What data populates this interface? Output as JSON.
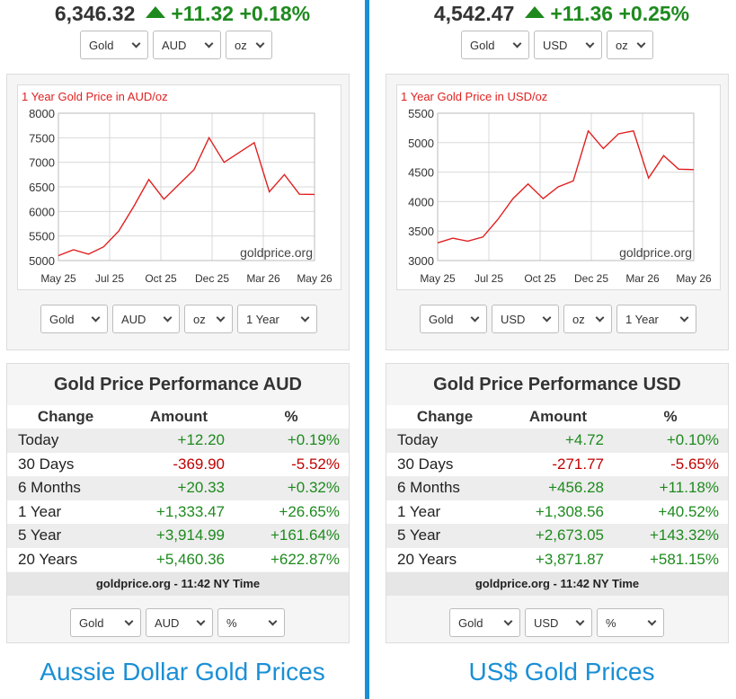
{
  "left": {
    "ticker": {
      "price": "6,346.32",
      "change": "+11.32",
      "percent": "+0.18%"
    },
    "top_selects": [
      "Gold",
      "AUD",
      "oz"
    ],
    "chart_selects": [
      "Gold",
      "AUD",
      "oz",
      "1 Year"
    ],
    "bottom_selects": [
      "Gold",
      "AUD",
      "%"
    ],
    "perf_title": "Gold Price Performance AUD",
    "headers": [
      "Change",
      "Amount",
      "%"
    ],
    "rows": [
      {
        "label": "Today",
        "amount": "+12.20",
        "pct": "+0.19%",
        "sign": "pos"
      },
      {
        "label": "30 Days",
        "amount": "-369.90",
        "pct": "-5.52%",
        "sign": "neg"
      },
      {
        "label": "6 Months",
        "amount": "+20.33",
        "pct": "+0.32%",
        "sign": "pos"
      },
      {
        "label": "1 Year",
        "amount": "+1,333.47",
        "pct": "+26.65%",
        "sign": "pos"
      },
      {
        "label": "5 Year",
        "amount": "+3,914.99",
        "pct": "+161.64%",
        "sign": "pos"
      },
      {
        "label": "20 Years",
        "amount": "+5,460.36",
        "pct": "+622.87%",
        "sign": "pos"
      }
    ],
    "footer": "goldprice.org - 11:42 NY Time",
    "caption": "Aussie Dollar Gold Prices"
  },
  "right": {
    "ticker": {
      "price": "4,542.47",
      "change": "+11.36",
      "percent": "+0.25%"
    },
    "top_selects": [
      "Gold",
      "USD",
      "oz"
    ],
    "chart_selects": [
      "Gold",
      "USD",
      "oz",
      "1 Year"
    ],
    "bottom_selects": [
      "Gold",
      "USD",
      "%"
    ],
    "perf_title": "Gold Price Performance USD",
    "headers": [
      "Change",
      "Amount",
      "%"
    ],
    "rows": [
      {
        "label": "Today",
        "amount": "+4.72",
        "pct": "+0.10%",
        "sign": "pos"
      },
      {
        "label": "30 Days",
        "amount": "-271.77",
        "pct": "-5.65%",
        "sign": "neg"
      },
      {
        "label": "6 Months",
        "amount": "+456.28",
        "pct": "+11.18%",
        "sign": "pos"
      },
      {
        "label": "1 Year",
        "amount": "+1,308.56",
        "pct": "+40.52%",
        "sign": "pos"
      },
      {
        "label": "5 Year",
        "amount": "+2,673.05",
        "pct": "+143.32%",
        "sign": "pos"
      },
      {
        "label": "20 Years",
        "amount": "+3,871.87",
        "pct": "+581.15%",
        "sign": "pos"
      }
    ],
    "footer": "goldprice.org - 11:42 NY Time",
    "caption": "US$ Gold Prices"
  },
  "chart_data": [
    {
      "type": "line",
      "title": "1 Year Gold Price in AUD/oz",
      "watermark": "goldprice.org",
      "xticks": [
        "May 25",
        "Jul 25",
        "Oct 25",
        "Dec 25",
        "Mar 26",
        "May 26"
      ],
      "yticks": [
        5000,
        5500,
        6000,
        6500,
        7000,
        7500,
        8000
      ],
      "ylim": [
        5000,
        8000
      ],
      "line_color": "#e02020",
      "grid": true,
      "x": [
        "May 25",
        "Jun 25",
        "Jul 25",
        "Aug 25",
        "Sep 25",
        "Oct 25",
        "Oct 25",
        "Nov 25",
        "Dec 25",
        "Dec 25",
        "Jan 26",
        "Jan 26",
        "Feb 26",
        "Mar 26",
        "Mar 26",
        "Apr 26",
        "Apr 26",
        "May 26"
      ],
      "values": [
        5100,
        5220,
        5130,
        5280,
        5600,
        6100,
        6650,
        6250,
        6550,
        6850,
        7500,
        7000,
        7200,
        7400,
        6400,
        6750,
        6350,
        6346
      ]
    },
    {
      "type": "line",
      "title": "1 Year Gold Price in USD/oz",
      "watermark": "goldprice.org",
      "xticks": [
        "May 25",
        "Jul 25",
        "Oct 25",
        "Dec 25",
        "Mar 26",
        "May 26"
      ],
      "yticks": [
        3000,
        3500,
        4000,
        4500,
        5000,
        5500
      ],
      "ylim": [
        3000,
        5500
      ],
      "line_color": "#e02020",
      "grid": true,
      "x": [
        "May 25",
        "Jun 25",
        "Jul 25",
        "Aug 25",
        "Sep 25",
        "Oct 25",
        "Oct 25",
        "Nov 25",
        "Dec 25",
        "Dec 25",
        "Jan 26",
        "Jan 26",
        "Feb 26",
        "Mar 26",
        "Mar 26",
        "Apr 26",
        "Apr 26",
        "May 26"
      ],
      "values": [
        3300,
        3380,
        3330,
        3400,
        3700,
        4050,
        4300,
        4050,
        4250,
        4350,
        5200,
        4900,
        5150,
        5200,
        4400,
        4780,
        4550,
        4542
      ]
    }
  ]
}
